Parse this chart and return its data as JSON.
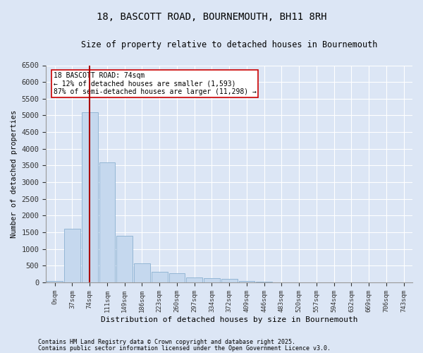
{
  "title": "18, BASCOTT ROAD, BOURNEMOUTH, BH11 8RH",
  "subtitle": "Size of property relative to detached houses in Bournemouth",
  "xlabel": "Distribution of detached houses by size in Bournemouth",
  "ylabel": "Number of detached properties",
  "bar_color": "#c5d8ee",
  "bar_edge_color": "#8ab0d0",
  "vline_color": "#aa0000",
  "vline_x": 2,
  "annotation_title": "18 BASCOTT ROAD: 74sqm",
  "annotation_line1": "← 12% of detached houses are smaller (1,593)",
  "annotation_line2": "87% of semi-detached houses are larger (11,298) →",
  "annotation_box_color": "#cc0000",
  "background_color": "#dce6f5",
  "plot_bg_color": "#dce6f5",
  "tick_labels": [
    "0sqm",
    "37sqm",
    "74sqm",
    "111sqm",
    "149sqm",
    "186sqm",
    "223sqm",
    "260sqm",
    "297sqm",
    "334sqm",
    "372sqm",
    "409sqm",
    "446sqm",
    "483sqm",
    "520sqm",
    "557sqm",
    "594sqm",
    "632sqm",
    "669sqm",
    "706sqm",
    "743sqm"
  ],
  "bar_heights": [
    50,
    1600,
    5100,
    3600,
    1400,
    580,
    310,
    270,
    150,
    120,
    100,
    50,
    10,
    5,
    3,
    2,
    1,
    0,
    0,
    0,
    0
  ],
  "ylim": [
    0,
    6500
  ],
  "yticks": [
    0,
    500,
    1000,
    1500,
    2000,
    2500,
    3000,
    3500,
    4000,
    4500,
    5000,
    5500,
    6000,
    6500
  ],
  "footnote1": "Contains HM Land Registry data © Crown copyright and database right 2025.",
  "footnote2": "Contains public sector information licensed under the Open Government Licence v3.0."
}
